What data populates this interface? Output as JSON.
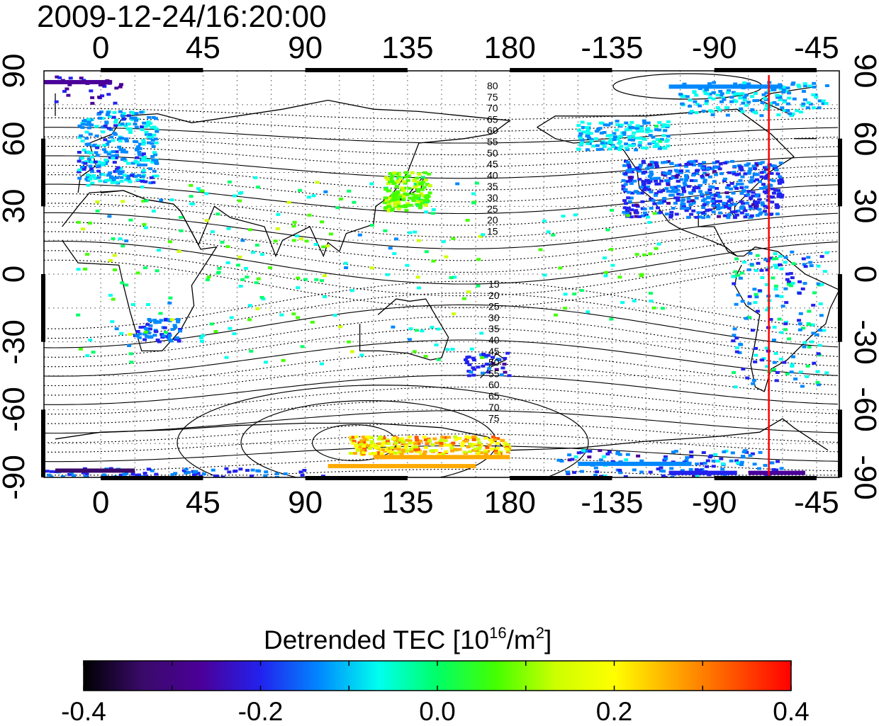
{
  "title": "2009-12-24/16:20:00",
  "map": {
    "lon_ticks": [
      "0",
      "45",
      "90",
      "135",
      "180",
      "-135",
      "-90",
      "-45"
    ],
    "lat_ticks": [
      "90",
      "60",
      "30",
      "0",
      "-30",
      "-60",
      "-90"
    ],
    "contour_labels_north": [
      "80",
      "75",
      "70",
      "65",
      "60",
      "55",
      "50",
      "45",
      "40",
      "35",
      "30",
      "25",
      "20",
      "15"
    ],
    "contour_labels_south": [
      "15",
      "20",
      "25",
      "30",
      "35",
      "40",
      "45",
      "50",
      "55",
      "60",
      "65",
      "70",
      "75"
    ],
    "terminator_longitude": -66,
    "terminator_color": "#ff0000"
  },
  "colorbar": {
    "title_main": "Detrended TEC  [10",
    "title_exp1": "16",
    "title_mid": "/m",
    "title_exp2": "2",
    "title_end": "]",
    "tick_labels": [
      "-0.4",
      "-0.2",
      "0.0",
      "0.2",
      "0.4"
    ],
    "min": -0.4,
    "max": 0.4,
    "colors": [
      "#000000",
      "#3a0a6a",
      "#4b0099",
      "#2222ee",
      "#0088ff",
      "#00ffee",
      "#00ff66",
      "#44ff00",
      "#ccff00",
      "#ffff00",
      "#ffaa00",
      "#ff5500",
      "#ff0000"
    ]
  }
}
